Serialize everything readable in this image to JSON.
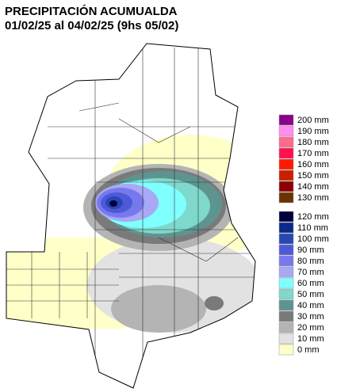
{
  "header": {
    "title": "PRECIPITACIÓN ACUMUALDA",
    "subtitle": "01/02/25 al 04/02/25 (9hs 05/02)"
  },
  "legend": {
    "items": [
      {
        "label": "200 mm",
        "color": "#8b008b"
      },
      {
        "label": "190 mm",
        "color": "#ff8cf0"
      },
      {
        "label": "180 mm",
        "color": "#ff6a8a"
      },
      {
        "label": "170 mm",
        "color": "#ff1050"
      },
      {
        "label": "160 mm",
        "color": "#ff1a00"
      },
      {
        "label": "150 mm",
        "color": "#c82000"
      },
      {
        "label": "140 mm",
        "color": "#8b0000"
      },
      {
        "label": "130 mm",
        "color": "#6b3300"
      },
      {
        "label": "120 mm",
        "color": "#00003c"
      },
      {
        "label": "110 mm",
        "color": "#0a2a8c"
      },
      {
        "label": "100 mm",
        "color": "#2a46b4"
      },
      {
        "label": "90 mm",
        "color": "#4c5ad8"
      },
      {
        "label": "80 mm",
        "color": "#7878ee"
      },
      {
        "label": "70 mm",
        "color": "#a8a8f4"
      },
      {
        "label": "60 mm",
        "color": "#80ffff"
      },
      {
        "label": "50 mm",
        "color": "#7ed8cc"
      },
      {
        "label": "40 mm",
        "color": "#5e9490"
      },
      {
        "label": "30 mm",
        "color": "#7a7a7a"
      },
      {
        "label": "20 mm",
        "color": "#b4b4b4"
      },
      {
        "label": "10 mm",
        "color": "#e2e2e2"
      },
      {
        "label": "0 mm",
        "color": "#ffffc8"
      }
    ]
  }
}
